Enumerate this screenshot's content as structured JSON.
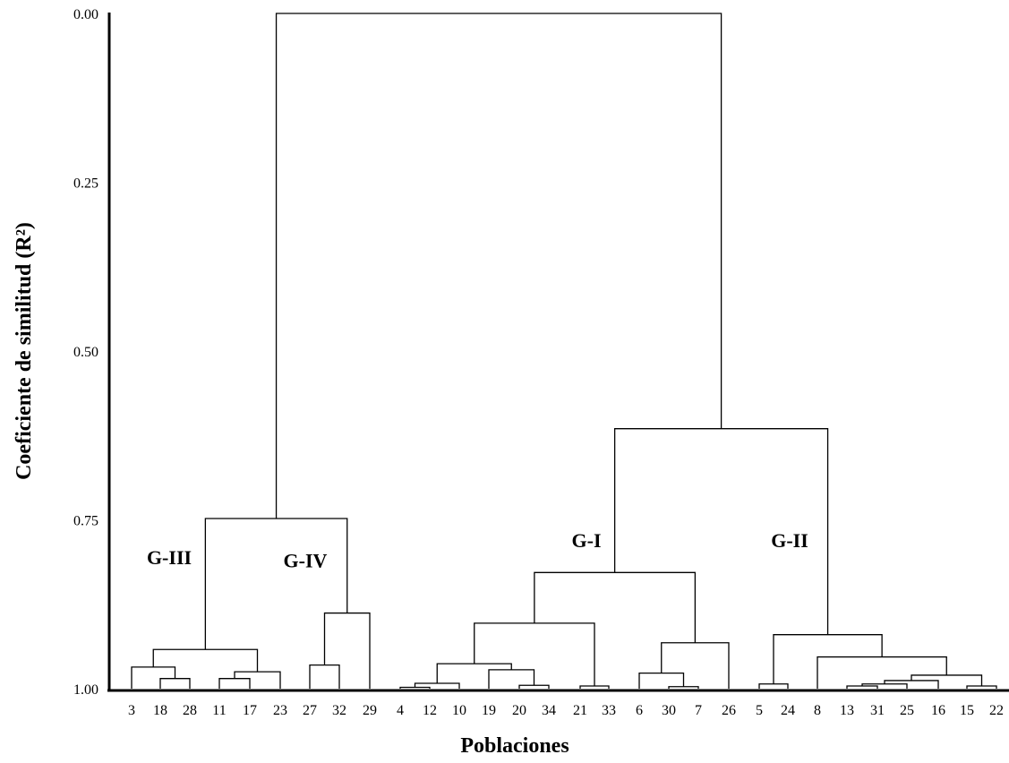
{
  "chart_data": {
    "type": "dendrogram",
    "xlabel": "Poblaciones",
    "ylabel": "Coeficiente de similitud (R²)",
    "ylim": [
      0,
      1
    ],
    "y_ticks": [
      "0.00",
      "0.25",
      "0.50",
      "0.75",
      "1.00"
    ],
    "y_tick_values": [
      0,
      0.25,
      0.5,
      0.75,
      1
    ],
    "leaves": [
      "3",
      "18",
      "28",
      "11",
      "17",
      "23",
      "27",
      "32",
      "29",
      "4",
      "12",
      "10",
      "19",
      "20",
      "34",
      "21",
      "33",
      "6",
      "30",
      "7",
      "26",
      "5",
      "24",
      "8",
      "13",
      "31",
      "25",
      "16",
      "15",
      "22"
    ],
    "merges": [
      {
        "a": "18",
        "b": "28",
        "height": 0.985
      },
      {
        "a": "11",
        "b": "17",
        "height": 0.985
      },
      {
        "a": "11+17",
        "b": "23",
        "height": 0.975
      },
      {
        "a": "3",
        "b": "18+28",
        "height": 0.968
      },
      {
        "a": "3,18,28",
        "b": "11,17,23",
        "height": 0.942
      },
      {
        "a": "27",
        "b": "32",
        "height": 0.965
      },
      {
        "a": "27+32",
        "b": "29",
        "height": 0.888
      },
      {
        "a": "G-III",
        "b": "G-IV",
        "height": 0.748
      },
      {
        "a": "4",
        "b": "12",
        "height": 0.998
      },
      {
        "a": "4+12",
        "b": "10",
        "height": 0.992
      },
      {
        "a": "20",
        "b": "34",
        "height": 0.995
      },
      {
        "a": "19",
        "b": "20+34",
        "height": 0.972
      },
      {
        "a": "4,12,10",
        "b": "19,20,34",
        "height": 0.963
      },
      {
        "a": "21",
        "b": "33",
        "height": 0.996
      },
      {
        "a": "4,12,10,19,20,34",
        "b": "21,33",
        "height": 0.903
      },
      {
        "a": "30",
        "b": "7",
        "height": 0.997
      },
      {
        "a": "6",
        "b": "30+7",
        "height": 0.977
      },
      {
        "a": "6,30,7",
        "b": "26",
        "height": 0.932
      },
      {
        "a": "G-I left",
        "b": "6,30,7,26",
        "height": 0.828
      },
      {
        "a": "5",
        "b": "24",
        "height": 0.993
      },
      {
        "a": "13",
        "b": "31",
        "height": 0.996
      },
      {
        "a": "13+31",
        "b": "25",
        "height": 0.993
      },
      {
        "a": "13,31,25",
        "b": "16",
        "height": 0.988
      },
      {
        "a": "15",
        "b": "22",
        "height": 0.996
      },
      {
        "a": "13,31,25,16",
        "b": "15,22",
        "height": 0.98
      },
      {
        "a": "8",
        "b": "13,31,25,16,15,22",
        "height": 0.953
      },
      {
        "a": "5,24",
        "b": "8,...",
        "height": 0.92
      },
      {
        "a": "G-I",
        "b": "G-II",
        "height": 0.615
      },
      {
        "a": "G-III+G-IV",
        "b": "G-I+G-II",
        "height": 0.0
      }
    ],
    "groups": [
      {
        "label": "G-III",
        "x_leaf_span": [
          "3",
          "23"
        ],
        "label_height": 0.805
      },
      {
        "label": "G-IV",
        "x_leaf_span": [
          "27",
          "29"
        ],
        "label_height": 0.81
      },
      {
        "label": "G-I",
        "x_leaf_span": [
          "4",
          "26"
        ],
        "label_height": 0.78
      },
      {
        "label": "G-II",
        "x_leaf_span": [
          "5",
          "22"
        ],
        "label_height": 0.78
      }
    ]
  }
}
